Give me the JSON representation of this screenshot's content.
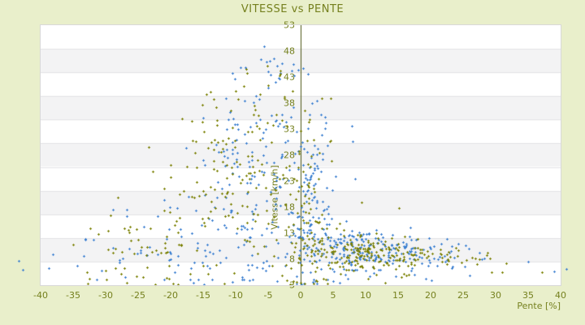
{
  "colors": {
    "background": "#e9efcb",
    "text_olive": "#75801e",
    "axis_line": "#4d5614",
    "plot_bg": "#ffffff",
    "band_gray": "#f3f3f4",
    "band_line": "#e4e4e6",
    "plot_border": "#d8d8d8",
    "series_blue": "#3b7fd0",
    "series_olive": "#7b8104"
  },
  "chart_data": {
    "type": "scatter",
    "title": "VITESSE vs PENTE",
    "xlabel": "Pente [%]",
    "ylabel": "Vitesse [km/h]",
    "xlim": [
      -40,
      40
    ],
    "ylim": [
      3,
      53
    ],
    "x_ticks": [
      -40,
      -35,
      -30,
      -25,
      -20,
      -15,
      -10,
      -5,
      0,
      5,
      10,
      15,
      20,
      25,
      30,
      35,
      40
    ],
    "y_ticks": [
      3,
      8,
      13,
      18,
      23,
      28,
      33,
      38,
      43,
      48,
      53
    ],
    "legend": "none",
    "grid": "horizontal alternating bands",
    "band_count": 11,
    "marker": "plus-3px",
    "points_unclipped": true,
    "seed": 42,
    "envelope_vmax": [
      [
        -44,
        7.5
      ],
      [
        -35,
        12
      ],
      [
        -30,
        19
      ],
      [
        -25,
        27
      ],
      [
        -20,
        35
      ],
      [
        -15,
        39.5
      ],
      [
        -10,
        44.5
      ],
      [
        -6,
        49.5
      ],
      [
        -3,
        47
      ],
      [
        0,
        46
      ],
      [
        3,
        43
      ],
      [
        5,
        41.5
      ],
      [
        8,
        36
      ],
      [
        10,
        30
      ],
      [
        12,
        24
      ],
      [
        15,
        18.5
      ],
      [
        20,
        13.5
      ],
      [
        25,
        11
      ],
      [
        30,
        9.5
      ],
      [
        41,
        8.5
      ]
    ],
    "clusters_format": [
      "center_pente",
      "center_vitesse",
      "sd_pente",
      "sd_vitesse",
      "count"
    ],
    "series": [
      {
        "name": "vitesse-blue",
        "color": "#3b7fd0",
        "clusters": [
          [
            -6,
            16,
            7,
            8,
            140
          ],
          [
            -6,
            33,
            5,
            6,
            70
          ],
          [
            1.5,
            18,
            1.6,
            9,
            110
          ],
          [
            9,
            9.3,
            4,
            2.2,
            150
          ],
          [
            19,
            8.8,
            4.5,
            1.8,
            70
          ],
          [
            -22,
            9.5,
            8,
            4,
            45
          ],
          [
            -5,
            43,
            3.5,
            2.5,
            18
          ]
        ],
        "outliers": [
          [
            -43.4,
            7.7
          ],
          [
            -42.8,
            6.0
          ],
          [
            -38.8,
            6.3
          ],
          [
            -34.4,
            6.8
          ],
          [
            -30.6,
            5.8
          ],
          [
            40.9,
            6.1
          ],
          [
            39,
            5.7
          ],
          [
            35,
            7.5
          ],
          [
            26,
            4.8
          ],
          [
            -10.5,
            3.6
          ],
          [
            6,
            3.4
          ]
        ]
      },
      {
        "name": "vitesse-olive",
        "color": "#7b8104",
        "clusters": [
          [
            -9,
            17,
            7.5,
            8,
            130
          ],
          [
            -8,
            31,
            6,
            6,
            65
          ],
          [
            1.5,
            13,
            1.8,
            7,
            70
          ],
          [
            9.5,
            8.8,
            4,
            2,
            140
          ],
          [
            19,
            8.5,
            4.5,
            1.6,
            55
          ],
          [
            -24,
            10,
            7.5,
            4.5,
            45
          ],
          [
            -6,
            40,
            4,
            3,
            10
          ]
        ],
        "outliers": [
          [
            29.1,
            8.2
          ],
          [
            29.4,
            5.5
          ],
          [
            31,
            5.5
          ],
          [
            37.1,
            5.5
          ],
          [
            -32.9,
            5.5
          ],
          [
            -20.6,
            4.4
          ],
          [
            13,
            3.5
          ],
          [
            2,
            3.3
          ]
        ]
      }
    ],
    "note": "dense point cloud; cluster parameters approximate the pixel distribution"
  }
}
